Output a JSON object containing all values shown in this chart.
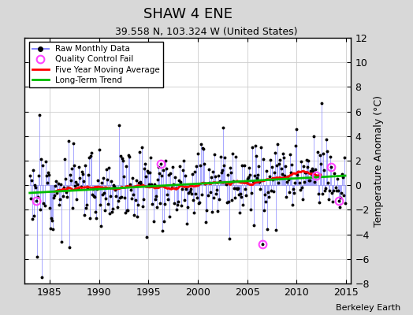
{
  "title": "SHAW 4 ENE",
  "subtitle": "39.558 N, 103.324 W (United States)",
  "ylabel": "Temperature Anomaly (°C)",
  "credit": "Berkeley Earth",
  "xlim": [
    1982.5,
    2015.5
  ],
  "ylim": [
    -8,
    12
  ],
  "yticks": [
    -8,
    -6,
    -4,
    -2,
    0,
    2,
    4,
    6,
    8,
    10,
    12
  ],
  "xticks": [
    1985,
    1990,
    1995,
    2000,
    2005,
    2010,
    2015
  ],
  "bg_color": "#d8d8d8",
  "plot_bg_color": "#ffffff",
  "raw_color": "#6666ff",
  "raw_line_color": "#8888ff",
  "qc_color": "#ff44ff",
  "moving_avg_color": "#ff0000",
  "trend_color": "#00bb00",
  "seed": 12
}
